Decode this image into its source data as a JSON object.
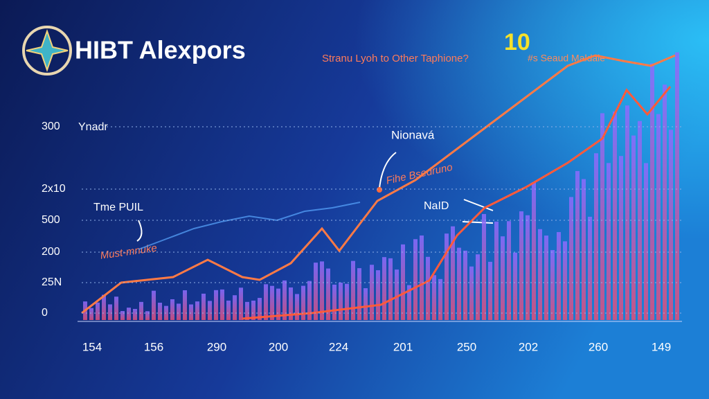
{
  "header": {
    "title": "HIBT Alexpors"
  },
  "annotations": {
    "top_left": "Stranu Lyoh to Other Taphione?",
    "top_number": "10",
    "top_right": "#s Seaud Maldale",
    "y_name": "Ynadr",
    "peak": "Nionavá",
    "mid": "Fihe Bsedruno",
    "right": "NaID",
    "left": "Tme PUIL",
    "low": "Must-mnuke"
  },
  "y_labels": [
    "300",
    "2x10",
    "500",
    "200",
    "25N",
    "0"
  ],
  "x_labels": [
    "154",
    "156",
    "290",
    "200",
    "224",
    "201",
    "250",
    "202",
    "260",
    "149"
  ]
}
